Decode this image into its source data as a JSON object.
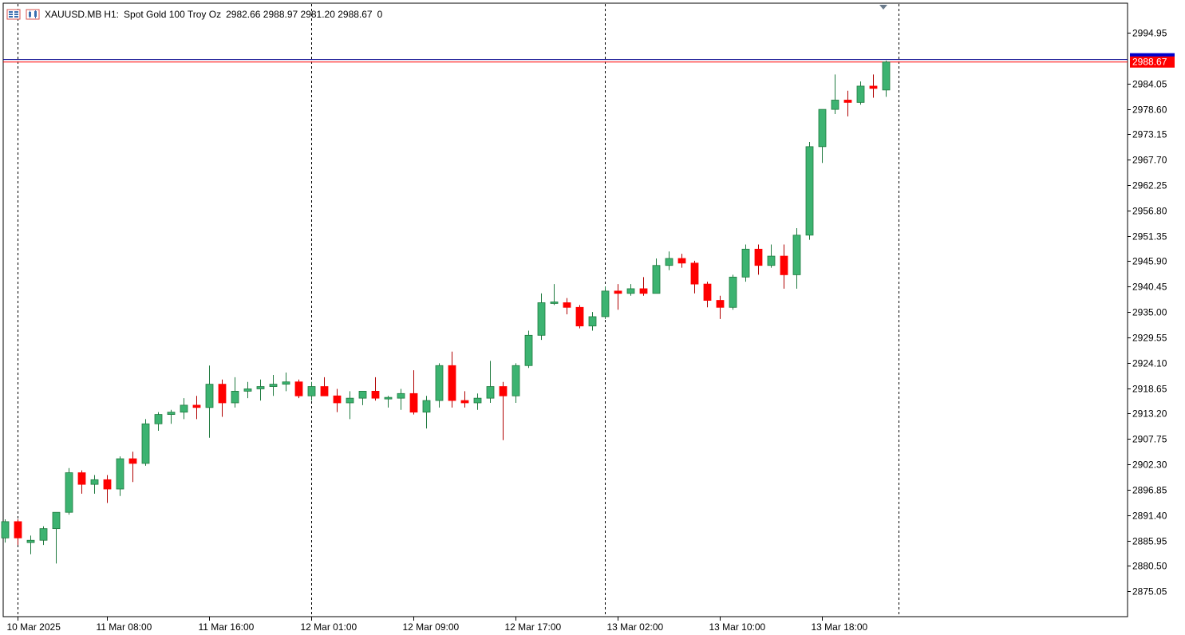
{
  "header": {
    "symbol": "XAUUSD.MB",
    "timeframe": "H1:",
    "description": "Spot Gold 100 Troy Oz",
    "ohlc": "2982.66 2988.97 2981.20 2988.67",
    "volume": "0",
    "icons": [
      "market-watch-icon",
      "symbol-chart-icon"
    ]
  },
  "colors": {
    "bull": "#3cb371",
    "bear": "#ff0000",
    "wick_bull": "#1f7a3f",
    "wick_bear": "#b00000",
    "bid_line": "#ff0000",
    "ask_line": "#00008b",
    "price_tag_bg": "#ff0000",
    "ask_tag_bg": "#0000cd",
    "axis": "#000000",
    "period_sep": "#000000"
  },
  "chart_data": {
    "type": "candlestick",
    "symbol": "XAUUSD.MB",
    "timeframe": "H1",
    "ylim": [
      2869.6,
      3001.3
    ],
    "y_ticks": [
      "2994.95",
      "2984.05",
      "2978.60",
      "2973.15",
      "2967.70",
      "2962.25",
      "2956.80",
      "2951.35",
      "2945.90",
      "2940.45",
      "2935.00",
      "2929.55",
      "2924.10",
      "2918.65",
      "2913.20",
      "2907.75",
      "2902.30",
      "2896.85",
      "2891.40",
      "2885.95",
      "2880.50",
      "2875.05"
    ],
    "x_labels": [
      {
        "index": 1,
        "label": "10 Mar 2025"
      },
      {
        "index": 8,
        "label": "11 Mar 08:00"
      },
      {
        "index": 16,
        "label": "11 Mar 16:00"
      },
      {
        "index": 24,
        "label": "12 Mar 01:00"
      },
      {
        "index": 32,
        "label": "12 Mar 09:00"
      },
      {
        "index": 40,
        "label": "12 Mar 17:00"
      },
      {
        "index": 48,
        "label": "13 Mar 02:00"
      },
      {
        "index": 56,
        "label": "13 Mar 10:00"
      },
      {
        "index": 64,
        "label": "13 Mar 18:00"
      }
    ],
    "period_separators": [
      1,
      24,
      47,
      70
    ],
    "bid_price": "2988.67",
    "ask_price": "2989.2",
    "candles": [
      [
        2886.5,
        2890.5,
        2885.5,
        2890.0
      ],
      [
        2890.0,
        2890.5,
        2885.0,
        2886.5
      ],
      [
        2885.5,
        2887.0,
        2883.0,
        2886.0
      ],
      [
        2886.0,
        2889.0,
        2885.0,
        2888.5
      ],
      [
        2888.5,
        2892.0,
        2881.0,
        2892.0
      ],
      [
        2892.0,
        2901.5,
        2891.5,
        2900.5
      ],
      [
        2900.5,
        2901.0,
        2896.0,
        2898.0
      ],
      [
        2898.0,
        2900.0,
        2896.0,
        2899.0
      ],
      [
        2899.0,
        2900.0,
        2894.0,
        2897.0
      ],
      [
        2897.0,
        2904.0,
        2895.5,
        2903.5
      ],
      [
        2903.5,
        2905.0,
        2898.5,
        2902.5
      ],
      [
        2902.5,
        2912.0,
        2902.0,
        2911.0
      ],
      [
        2911.0,
        2913.5,
        2909.5,
        2913.0
      ],
      [
        2913.0,
        2914.0,
        2911.0,
        2913.5
      ],
      [
        2913.5,
        2916.5,
        2912.0,
        2915.0
      ],
      [
        2915.0,
        2917.0,
        2912.0,
        2914.5
      ],
      [
        2914.5,
        2923.5,
        2908.0,
        2919.5
      ],
      [
        2919.5,
        2920.5,
        2912.5,
        2915.5
      ],
      [
        2915.5,
        2921.0,
        2914.5,
        2918.0
      ],
      [
        2918.0,
        2920.0,
        2916.5,
        2918.5
      ],
      [
        2918.5,
        2920.5,
        2916.0,
        2919.0
      ],
      [
        2919.0,
        2921.5,
        2917.0,
        2919.5
      ],
      [
        2919.5,
        2922.0,
        2918.0,
        2920.0
      ],
      [
        2920.0,
        2920.5,
        2916.5,
        2917.0
      ],
      [
        2917.0,
        2920.0,
        2916.0,
        2919.0
      ],
      [
        2919.0,
        2921.0,
        2917.0,
        2917.0
      ],
      [
        2917.0,
        2918.5,
        2913.5,
        2915.5
      ],
      [
        2915.5,
        2918.0,
        2912.0,
        2916.5
      ],
      [
        2916.5,
        2918.0,
        2915.0,
        2918.0
      ],
      [
        2918.0,
        2921.0,
        2916.0,
        2916.5
      ],
      [
        2916.5,
        2917.0,
        2914.5,
        2916.5
      ],
      [
        2916.5,
        2918.5,
        2914.0,
        2917.5
      ],
      [
        2917.5,
        2922.5,
        2913.0,
        2913.5
      ],
      [
        2913.5,
        2917.0,
        2910.0,
        2916.0
      ],
      [
        2916.0,
        2924.0,
        2914.5,
        2923.5
      ],
      [
        2923.5,
        2926.5,
        2914.5,
        2916.0
      ],
      [
        2916.0,
        2918.0,
        2914.5,
        2915.5
      ],
      [
        2915.5,
        2917.5,
        2914.0,
        2916.5
      ],
      [
        2916.5,
        2924.5,
        2915.5,
        2919.0
      ],
      [
        2919.0,
        2920.0,
        2907.5,
        2917.0
      ],
      [
        2917.0,
        2924.0,
        2915.5,
        2923.5
      ],
      [
        2923.5,
        2931.0,
        2923.0,
        2930.0
      ],
      [
        2930.0,
        2939.0,
        2929.0,
        2937.0
      ],
      [
        2937.0,
        2941.0,
        2936.5,
        2937.0
      ],
      [
        2937.0,
        2938.0,
        2934.5,
        2936.0
      ],
      [
        2936.0,
        2936.5,
        2931.5,
        2932.0
      ],
      [
        2932.0,
        2935.0,
        2931.0,
        2934.0
      ],
      [
        2934.0,
        2940.5,
        2933.5,
        2939.5
      ],
      [
        2939.5,
        2941.0,
        2935.5,
        2939.0
      ],
      [
        2939.0,
        2941.0,
        2938.5,
        2940.0
      ],
      [
        2940.0,
        2942.5,
        2938.5,
        2939.0
      ],
      [
        2939.0,
        2946.5,
        2939.0,
        2945.0
      ],
      [
        2945.0,
        2948.0,
        2944.0,
        2946.5
      ],
      [
        2946.5,
        2947.5,
        2944.5,
        2945.5
      ],
      [
        2945.5,
        2946.0,
        2939.0,
        2941.0
      ],
      [
        2941.0,
        2941.5,
        2936.0,
        2937.5
      ],
      [
        2937.5,
        2938.5,
        2933.5,
        2936.0
      ],
      [
        2936.0,
        2943.0,
        2935.5,
        2942.5
      ],
      [
        2942.5,
        2949.5,
        2941.5,
        2948.5
      ],
      [
        2948.5,
        2949.5,
        2943.0,
        2945.0
      ],
      [
        2945.0,
        2949.5,
        2944.5,
        2947.0
      ],
      [
        2947.0,
        2949.5,
        2940.0,
        2943.0
      ],
      [
        2943.0,
        2953.0,
        2940.0,
        2951.5
      ],
      [
        2951.5,
        2971.5,
        2950.5,
        2970.5
      ],
      [
        2970.5,
        2978.5,
        2967.0,
        2978.5
      ],
      [
        2978.5,
        2986.0,
        2977.5,
        2980.5
      ],
      [
        2980.5,
        2982.5,
        2977.0,
        2980.0
      ],
      [
        2980.0,
        2984.5,
        2979.5,
        2983.5
      ],
      [
        2983.5,
        2986.0,
        2981.0,
        2983.0
      ],
      [
        2982.66,
        2988.97,
        2981.2,
        2988.67
      ]
    ]
  }
}
